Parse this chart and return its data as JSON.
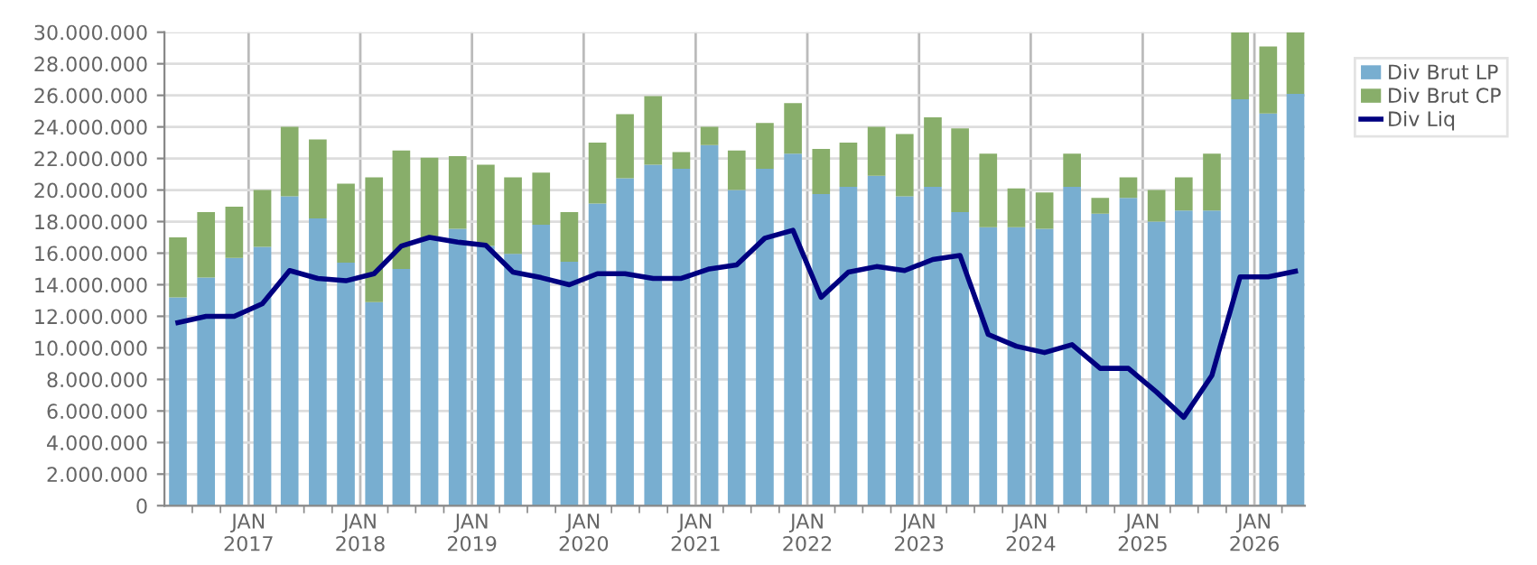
{
  "chart_data": {
    "type": "bar",
    "stacked": true,
    "x": [
      "2016-05-15",
      "2016-08-15",
      "2016-11-15",
      "2017-02-15",
      "2017-05-15",
      "2017-08-15",
      "2017-11-15",
      "2018-02-15",
      "2018-05-15",
      "2018-08-15",
      "2018-11-15",
      "2019-02-15",
      "2019-05-15",
      "2019-08-15",
      "2019-11-15",
      "2020-02-15",
      "2020-05-15",
      "2020-08-15",
      "2020-11-15",
      "2021-02-15",
      "2021-05-15",
      "2021-08-15",
      "2021-11-15",
      "2022-02-15",
      "2022-05-15",
      "2022-08-15",
      "2022-11-15",
      "2023-02-15",
      "2023-05-15",
      "2023-08-15",
      "2023-11-15",
      "2024-02-15",
      "2024-05-15",
      "2024-08-15",
      "2024-11-15",
      "2025-02-15",
      "2025-05-15",
      "2025-08-15",
      "2025-11-15",
      "2026-02-15",
      "2026-05-15"
    ],
    "series": [
      {
        "name": "Div Brut LP",
        "color": "#78aed0",
        "values": [
          13200000,
          14450000,
          15700000,
          16400000,
          19600000,
          18200000,
          15400000,
          12900000,
          15000000,
          16950000,
          17550000,
          16450000,
          15950000,
          17800000,
          15450000,
          19150000,
          20750000,
          21600000,
          21350000,
          22850000,
          20000000,
          21350000,
          22300000,
          19750000,
          20200000,
          20900000,
          19600000,
          20200000,
          18600000,
          17650000,
          17650000,
          17550000,
          20200000,
          18500000,
          19500000,
          18000000,
          18700000,
          18700000,
          25750000,
          24850000,
          26100000
        ]
      },
      {
        "name": "Div Brut CP",
        "color": "#88ae6a",
        "values": [
          3800000,
          4150000,
          3250000,
          3600000,
          4400000,
          5000000,
          5000000,
          7900000,
          7500000,
          5100000,
          4600000,
          5150000,
          4850000,
          3300000,
          3150000,
          3850000,
          4050000,
          4350000,
          1050000,
          1150000,
          2500000,
          2900000,
          3200000,
          2850000,
          2800000,
          3100000,
          3950000,
          4400000,
          5300000,
          4650000,
          2450000,
          2300000,
          2100000,
          1000000,
          1300000,
          2000000,
          2100000,
          3600000,
          4250000,
          4250000,
          3900000
        ]
      },
      {
        "name": "Div Liq",
        "type": "line",
        "color": "#000080",
        "values": [
          11600000,
          12000000,
          12000000,
          12800000,
          14900000,
          14400000,
          14250000,
          14700000,
          16450000,
          17000000,
          16700000,
          16500000,
          14800000,
          14450000,
          14000000,
          14700000,
          14700000,
          14400000,
          14400000,
          15000000,
          15250000,
          16950000,
          17450000,
          13200000,
          14800000,
          15150000,
          14900000,
          15600000,
          15850000,
          10850000,
          10100000,
          9700000,
          10200000,
          8700000,
          8700000,
          7200000,
          5600000,
          8250000,
          14500000,
          14500000,
          14850000
        ]
      }
    ],
    "xlim": [
      "2016-04-01",
      "2026-06-15"
    ],
    "xticks": [
      {
        "value": "2016-07-01",
        "label": null
      },
      {
        "value": "2016-10-01",
        "label": null
      },
      {
        "value": "2017-01-01",
        "label": "JAN\n2017"
      },
      {
        "value": "2017-04-01",
        "label": null
      },
      {
        "value": "2017-07-01",
        "label": null
      },
      {
        "value": "2017-10-01",
        "label": null
      },
      {
        "value": "2018-01-01",
        "label": "JAN\n2018"
      },
      {
        "value": "2018-04-01",
        "label": null
      },
      {
        "value": "2018-07-01",
        "label": null
      },
      {
        "value": "2018-10-01",
        "label": null
      },
      {
        "value": "2019-01-01",
        "label": "JAN\n2019"
      },
      {
        "value": "2019-04-01",
        "label": null
      },
      {
        "value": "2019-07-01",
        "label": null
      },
      {
        "value": "2019-10-01",
        "label": null
      },
      {
        "value": "2020-01-01",
        "label": "JAN\n2020"
      },
      {
        "value": "2020-04-01",
        "label": null
      },
      {
        "value": "2020-07-01",
        "label": null
      },
      {
        "value": "2020-10-01",
        "label": null
      },
      {
        "value": "2021-01-01",
        "label": "JAN\n2021"
      },
      {
        "value": "2021-04-01",
        "label": null
      },
      {
        "value": "2021-07-01",
        "label": null
      },
      {
        "value": "2021-10-01",
        "label": null
      },
      {
        "value": "2022-01-01",
        "label": "JAN\n2022"
      },
      {
        "value": "2022-04-01",
        "label": null
      },
      {
        "value": "2022-07-01",
        "label": null
      },
      {
        "value": "2022-10-01",
        "label": null
      },
      {
        "value": "2023-01-01",
        "label": "JAN\n2023"
      },
      {
        "value": "2023-04-01",
        "label": null
      },
      {
        "value": "2023-07-01",
        "label": null
      },
      {
        "value": "2023-10-01",
        "label": null
      },
      {
        "value": "2024-01-01",
        "label": "JAN\n2024"
      },
      {
        "value": "2024-04-01",
        "label": null
      },
      {
        "value": "2024-07-01",
        "label": null
      },
      {
        "value": "2024-10-01",
        "label": null
      },
      {
        "value": "2025-01-01",
        "label": "JAN\n2025"
      },
      {
        "value": "2025-04-01",
        "label": null
      },
      {
        "value": "2025-07-01",
        "label": null
      },
      {
        "value": "2025-10-01",
        "label": null
      },
      {
        "value": "2026-01-01",
        "label": "JAN\n2026"
      },
      {
        "value": "2026-04-01",
        "label": null
      }
    ],
    "ylim": [
      0,
      30000000
    ],
    "yticks": [
      0,
      {
        "value": 2000000,
        "label": "2.000.000"
      },
      {
        "value": 4000000,
        "label": "4.000.000"
      },
      {
        "value": 6000000,
        "label": "6.000.000"
      },
      {
        "value": 8000000,
        "label": "8.000.000"
      },
      {
        "value": 10000000,
        "label": "10.000.000"
      },
      {
        "value": 12000000,
        "label": "12.000.000"
      },
      {
        "value": 14000000,
        "label": "14.000.000"
      },
      {
        "value": 16000000,
        "label": "16.000.000"
      },
      {
        "value": 18000000,
        "label": "18.000.000"
      },
      {
        "value": 20000000,
        "label": "20.000.000"
      },
      {
        "value": 22000000,
        "label": "22.000.000"
      },
      {
        "value": 24000000,
        "label": "24.000.000"
      },
      {
        "value": 26000000,
        "label": "26.000.000"
      },
      {
        "value": 28000000,
        "label": "28.000.000"
      },
      {
        "value": 30000000,
        "label": "30.000.000"
      }
    ],
    "grid": true,
    "legend": "top right",
    "marker": "none",
    "line_style": "solid"
  }
}
